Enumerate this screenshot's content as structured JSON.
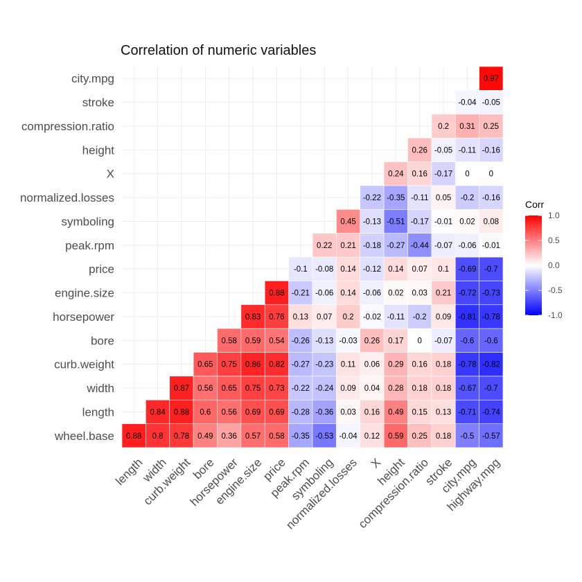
{
  "chart_data": {
    "type": "heatmap",
    "title": "Correlation of numeric variables",
    "x_labels": [
      "length",
      "width",
      "curb.weight",
      "bore",
      "horsepower",
      "engine.size",
      "price",
      "peak.rpm",
      "symboling",
      "normalized.losses",
      "X",
      "height",
      "compression.ratio",
      "stroke",
      "city.mpg",
      "highway.mpg"
    ],
    "y_labels": [
      "wheel.base",
      "length",
      "width",
      "curb.weight",
      "bore",
      "horsepower",
      "engine.size",
      "price",
      "peak.rpm",
      "symboling",
      "normalized.losses",
      "X",
      "height",
      "compression.ratio",
      "stroke",
      "city.mpg"
    ],
    "values": [
      [
        0.88,
        0.8,
        0.78,
        0.49,
        0.36,
        0.57,
        0.58,
        -0.35,
        -0.53,
        -0.04,
        0.12,
        0.59,
        0.25,
        0.18,
        -0.5,
        -0.57
      ],
      [
        null,
        0.84,
        0.88,
        0.6,
        0.56,
        0.69,
        0.69,
        -0.28,
        -0.36,
        0.03,
        0.16,
        0.49,
        0.15,
        0.13,
        -0.71,
        -0.74
      ],
      [
        null,
        null,
        0.87,
        0.56,
        0.65,
        0.75,
        0.73,
        -0.22,
        -0.24,
        0.09,
        0.04,
        0.28,
        0.18,
        0.18,
        -0.67,
        -0.7
      ],
      [
        null,
        null,
        null,
        0.65,
        0.75,
        0.86,
        0.82,
        -0.27,
        -0.23,
        0.11,
        0.06,
        0.29,
        0.16,
        0.18,
        -0.78,
        -0.82
      ],
      [
        null,
        null,
        null,
        null,
        0.58,
        0.59,
        0.54,
        -0.26,
        -0.13,
        -0.03,
        0.26,
        0.17,
        0,
        -0.07,
        -0.6,
        -0.6
      ],
      [
        null,
        null,
        null,
        null,
        null,
        0.83,
        0.76,
        0.13,
        0.07,
        0.2,
        -0.02,
        -0.11,
        -0.2,
        0.09,
        -0.81,
        -0.78
      ],
      [
        null,
        null,
        null,
        null,
        null,
        null,
        0.88,
        -0.21,
        -0.06,
        0.14,
        -0.06,
        0.02,
        0.03,
        0.21,
        -0.72,
        -0.73
      ],
      [
        null,
        null,
        null,
        null,
        null,
        null,
        null,
        -0.1,
        -0.08,
        0.14,
        -0.12,
        0.14,
        0.07,
        0.1,
        -0.69,
        -0.7
      ],
      [
        null,
        null,
        null,
        null,
        null,
        null,
        null,
        null,
        0.22,
        0.21,
        -0.18,
        -0.27,
        -0.44,
        -0.07,
        -0.06,
        -0.01
      ],
      [
        null,
        null,
        null,
        null,
        null,
        null,
        null,
        null,
        null,
        0.45,
        -0.13,
        -0.51,
        -0.17,
        -0.01,
        0.02,
        0.08
      ],
      [
        null,
        null,
        null,
        null,
        null,
        null,
        null,
        null,
        null,
        null,
        -0.22,
        -0.35,
        -0.11,
        0.05,
        -0.2,
        -0.16
      ],
      [
        null,
        null,
        null,
        null,
        null,
        null,
        null,
        null,
        null,
        null,
        null,
        0.24,
        0.16,
        -0.17,
        0,
        0
      ],
      [
        null,
        null,
        null,
        null,
        null,
        null,
        null,
        null,
        null,
        null,
        null,
        null,
        0.26,
        -0.05,
        -0.11,
        -0.16
      ],
      [
        null,
        null,
        null,
        null,
        null,
        null,
        null,
        null,
        null,
        null,
        null,
        null,
        null,
        0.2,
        0.31,
        0.25
      ],
      [
        null,
        null,
        null,
        null,
        null,
        null,
        null,
        null,
        null,
        null,
        null,
        null,
        null,
        null,
        -0.04,
        -0.05
      ],
      [
        null,
        null,
        null,
        null,
        null,
        null,
        null,
        null,
        null,
        null,
        null,
        null,
        null,
        null,
        null,
        0.97
      ]
    ],
    "legend": {
      "title": "Corr",
      "position": "right",
      "ticks": [
        "1.0",
        "0.5",
        "0.0",
        "-0.5",
        "-1.0"
      ],
      "range": [
        -1,
        1
      ]
    },
    "colors": {
      "low": "#0000ff",
      "mid": "#ffffff",
      "high": "#ff0000"
    },
    "grid": true
  }
}
